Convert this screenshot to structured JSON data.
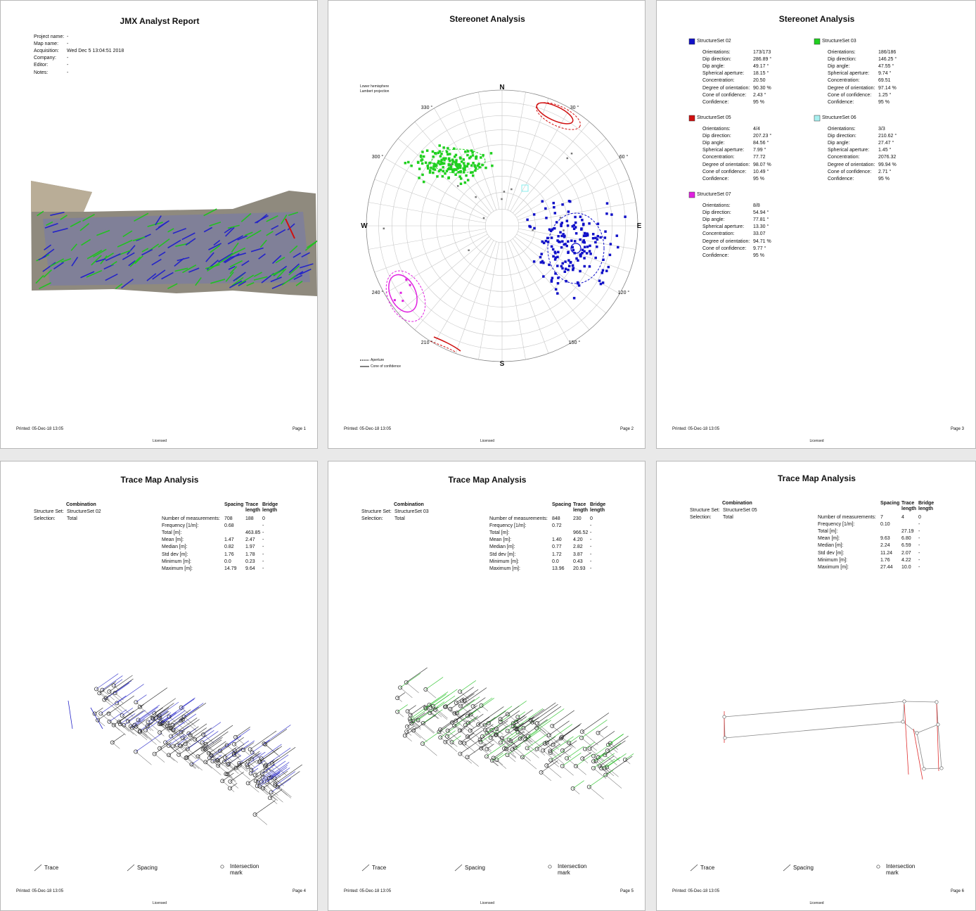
{
  "pages": [
    {
      "title": "JMX Analyst Report",
      "fields": [
        {
          "label": "Project name:",
          "value": "-"
        },
        {
          "label": "Map name:",
          "value": "-"
        },
        {
          "label": "Acquisition:",
          "value": "Wed Dec 5 13:04:51 2018"
        },
        {
          "label": "Company:",
          "value": "-"
        },
        {
          "label": "Editor:",
          "value": "-"
        },
        {
          "label": "Notes:",
          "value": "-"
        }
      ],
      "footer": {
        "printed": "Printed: 05-Dec-18 13:05",
        "page": "Page 1",
        "license": "Licensed"
      }
    },
    {
      "title": "Stereonet Analysis",
      "projection": [
        "Lower hemisphere",
        "Lambert projection"
      ],
      "compass": {
        "n": "N",
        "e": "E",
        "s": "S",
        "w": "W"
      },
      "degrees": [
        "330 °",
        "30 °",
        "300 °",
        "60 °",
        "240 °",
        "120 °",
        "210 °",
        "150 °"
      ],
      "legend": [
        "Aperture",
        "Cone of confidence"
      ],
      "footer": {
        "printed": "Printed: 05-Dec-18 13:05",
        "page": "Page 2",
        "license": "Licensed"
      }
    },
    {
      "title": "Stereonet Analysis",
      "row_labels": [
        "Orientations:",
        "Dip direction:",
        "Dip angle:",
        "Spherical aperture:",
        "Concentration:",
        "Degree of orientation:",
        "Cone of confidence:",
        "Confidence:"
      ],
      "sets": [
        {
          "name": "StructureSet 02",
          "color": "#1010c8",
          "values": [
            "173/173",
            "286.89 °",
            "49.17 °",
            "18.15 °",
            "20.50",
            "90.30 %",
            "2.43 °",
            "95 %"
          ]
        },
        {
          "name": "StructureSet 03",
          "color": "#20d020",
          "values": [
            "186/186",
            "146.25 °",
            "47.55 °",
            "9.74 °",
            "69.51",
            "97.14 %",
            "1.25 °",
            "95 %"
          ]
        },
        {
          "name": "StructureSet 05",
          "color": "#d01010",
          "values": [
            "4/4",
            "207.23 °",
            "84.56 °",
            "7.99 °",
            "77.72",
            "98.07 %",
            "10.49 °",
            "95 %"
          ]
        },
        {
          "name": "StructureSet 06",
          "color": "#a8f0f0",
          "values": [
            "3/3",
            "210.62 °",
            "27.47 °",
            "1.45 °",
            "2076.32",
            "99.94 %",
            "2.71 °",
            "95 %"
          ]
        },
        {
          "name": "StructureSet 07",
          "color": "#e020e0",
          "values": [
            "8/8",
            "54.94 °",
            "77.81 °",
            "13.30 °",
            "33.07",
            "94.71 %",
            "9.77 °",
            "95 %"
          ]
        }
      ],
      "footer": {
        "printed": "Printed: 05-Dec-18 13:05",
        "page": "Page 3",
        "license": "Licensed"
      }
    },
    {
      "title": "Trace Map Analysis",
      "combination": "Combination",
      "set_label": "Structure Set:",
      "set": "StructureSet 02",
      "selection_label": "Selection:",
      "selection": "Total",
      "columns": [
        "Spacing",
        "Trace length",
        "Bridge length"
      ],
      "row_labels": [
        "Number of measurements:",
        "Frequency [1/m]:",
        "Total [m]:",
        "Mean [m]:",
        "Median [m]:",
        "Std dev [m]:",
        "Minimum [m]:",
        "Maximum [m]:"
      ],
      "rows": [
        [
          "708",
          "188",
          "0"
        ],
        [
          "0.68",
          null,
          "-"
        ],
        [
          null,
          "463.85",
          "-"
        ],
        [
          "1.47",
          "2.47",
          "-"
        ],
        [
          "0.82",
          "1.97",
          "-"
        ],
        [
          "1.76",
          "1.78",
          "-"
        ],
        [
          "0.0",
          "0.23",
          "-"
        ],
        [
          "14.79",
          "9.64",
          "-"
        ]
      ],
      "legend": [
        "Trace",
        "Spacing",
        "Intersection mark"
      ],
      "footer": {
        "printed": "Printed: 05-Dec-18 13:05",
        "page": "Page 4",
        "license": "Licensed"
      }
    },
    {
      "title": "Trace Map Analysis",
      "combination": "Combination",
      "set_label": "Structure Set:",
      "set": "StructureSet 03",
      "selection_label": "Selection:",
      "selection": "Total",
      "columns": [
        "Spacing",
        "Trace length",
        "Bridge length"
      ],
      "row_labels": [
        "Number of measurements:",
        "Frequency [1/m]:",
        "Total [m]:",
        "Mean [m]:",
        "Median [m]:",
        "Std dev [m]:",
        "Minimum [m]:",
        "Maximum [m]:"
      ],
      "rows": [
        [
          "848",
          "230",
          "0"
        ],
        [
          "0.72",
          null,
          "-"
        ],
        [
          null,
          "966.52",
          "-"
        ],
        [
          "1.40",
          "4.20",
          "-"
        ],
        [
          "0.77",
          "2.82",
          "-"
        ],
        [
          "1.72",
          "3.87",
          "-"
        ],
        [
          "0.0",
          "0.43",
          "-"
        ],
        [
          "13.96",
          "20.93",
          "-"
        ]
      ],
      "legend": [
        "Trace",
        "Spacing",
        "Intersection mark"
      ],
      "footer": {
        "printed": "Printed: 05-Dec-18 13:05",
        "page": "Page 5",
        "license": "Licensed"
      }
    },
    {
      "title": "Trace Map Analysis",
      "combination": "Combination",
      "set_label": "Structure Set:",
      "set": "StructureSet 05",
      "selection_label": "Selection:",
      "selection": "Total",
      "columns": [
        "Spacing",
        "Trace length",
        "Bridge length"
      ],
      "row_labels": [
        "Number of measurements:",
        "Frequency [1/m]:",
        "Total [m]:",
        "Mean [m]:",
        "Median [m]:",
        "Std dev [m]:",
        "Minimum [m]:",
        "Maximum [m]:"
      ],
      "rows": [
        [
          "7",
          "4",
          "0"
        ],
        [
          "0.10",
          null,
          "-"
        ],
        [
          null,
          "27.19",
          "-"
        ],
        [
          "9.63",
          "6.80",
          "-"
        ],
        [
          "2.24",
          "6.59",
          "-"
        ],
        [
          "11.24",
          "2.07",
          "-"
        ],
        [
          "1.76",
          "4.22",
          "-"
        ],
        [
          "27.44",
          "10.0",
          "-"
        ]
      ],
      "legend": [
        "Trace",
        "Spacing",
        "Intersection mark"
      ],
      "footer": {
        "printed": "Printed: 05-Dec-18 13:05",
        "page": "Page 6",
        "license": "Licensed"
      }
    }
  ]
}
